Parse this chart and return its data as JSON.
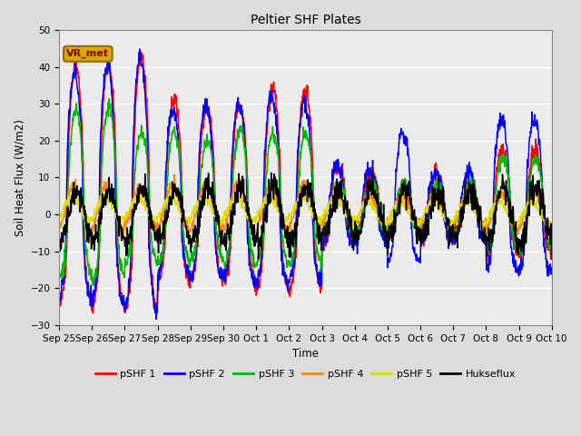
{
  "title": "Peltier SHF Plates",
  "xlabel": "Time",
  "ylabel": "Soil Heat Flux (W/m2)",
  "ylim": [
    -30,
    50
  ],
  "yticks": [
    -30,
    -20,
    -10,
    0,
    10,
    20,
    30,
    40,
    50
  ],
  "background_color": "#dcdcdc",
  "plot_bg_color": "#ebebeb",
  "annotation_text": "VR_met",
  "annotation_bg": "#d4aa00",
  "annotation_fg": "#8b0000",
  "x_tick_labels": [
    "Sep 25",
    "Sep 26",
    "Sep 27",
    "Sep 28",
    "Sep 29",
    "Sep 30",
    "Oct 1",
    "Oct 2",
    "Oct 3",
    "Oct 4",
    "Oct 5",
    "Oct 6",
    "Oct 7",
    "Oct 8",
    "Oct 9",
    "Oct 10"
  ],
  "colors": {
    "pSHF 1": "#ff0000",
    "pSHF 2": "#0000ff",
    "pSHF 3": "#00bb00",
    "pSHF 4": "#ff8800",
    "pSHF 5": "#dddd00",
    "Hukseflux": "#000000"
  },
  "n_days": 15,
  "pts_per_day": 96
}
